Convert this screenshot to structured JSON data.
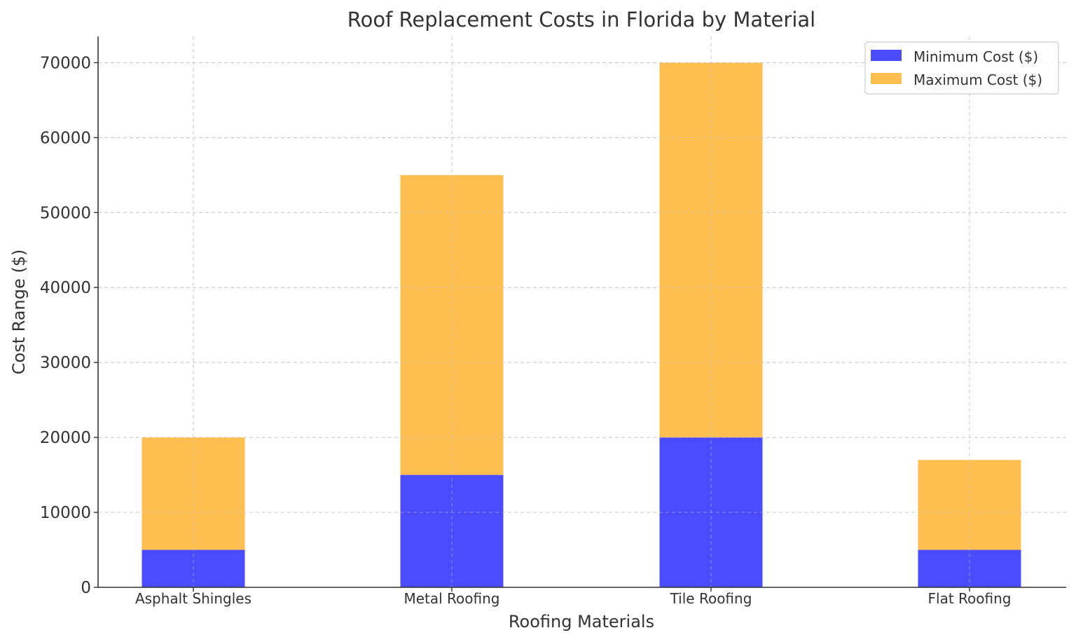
{
  "chart_data": {
    "type": "bar",
    "stacked": true,
    "title": "Roof Replacement Costs in Florida by Material",
    "xlabel": "Roofing Materials",
    "ylabel": "Cost Range ($)",
    "categories": [
      "Asphalt Shingles",
      "Metal Roofing",
      "Tile Roofing",
      "Flat Roofing"
    ],
    "series": [
      {
        "name": "Minimum Cost ($)",
        "values": [
          5000,
          15000,
          20000,
          5000
        ],
        "color": "#4b4bff"
      },
      {
        "name": "Maximum Cost ($)",
        "values": [
          15000,
          40000,
          50000,
          12000
        ],
        "color": "#ffbf50"
      }
    ],
    "ylim": [
      0,
      73500
    ],
    "yticks": [
      0,
      10000,
      20000,
      30000,
      40000,
      50000,
      60000,
      70000
    ],
    "grid": true,
    "legend_position": "top-right"
  }
}
